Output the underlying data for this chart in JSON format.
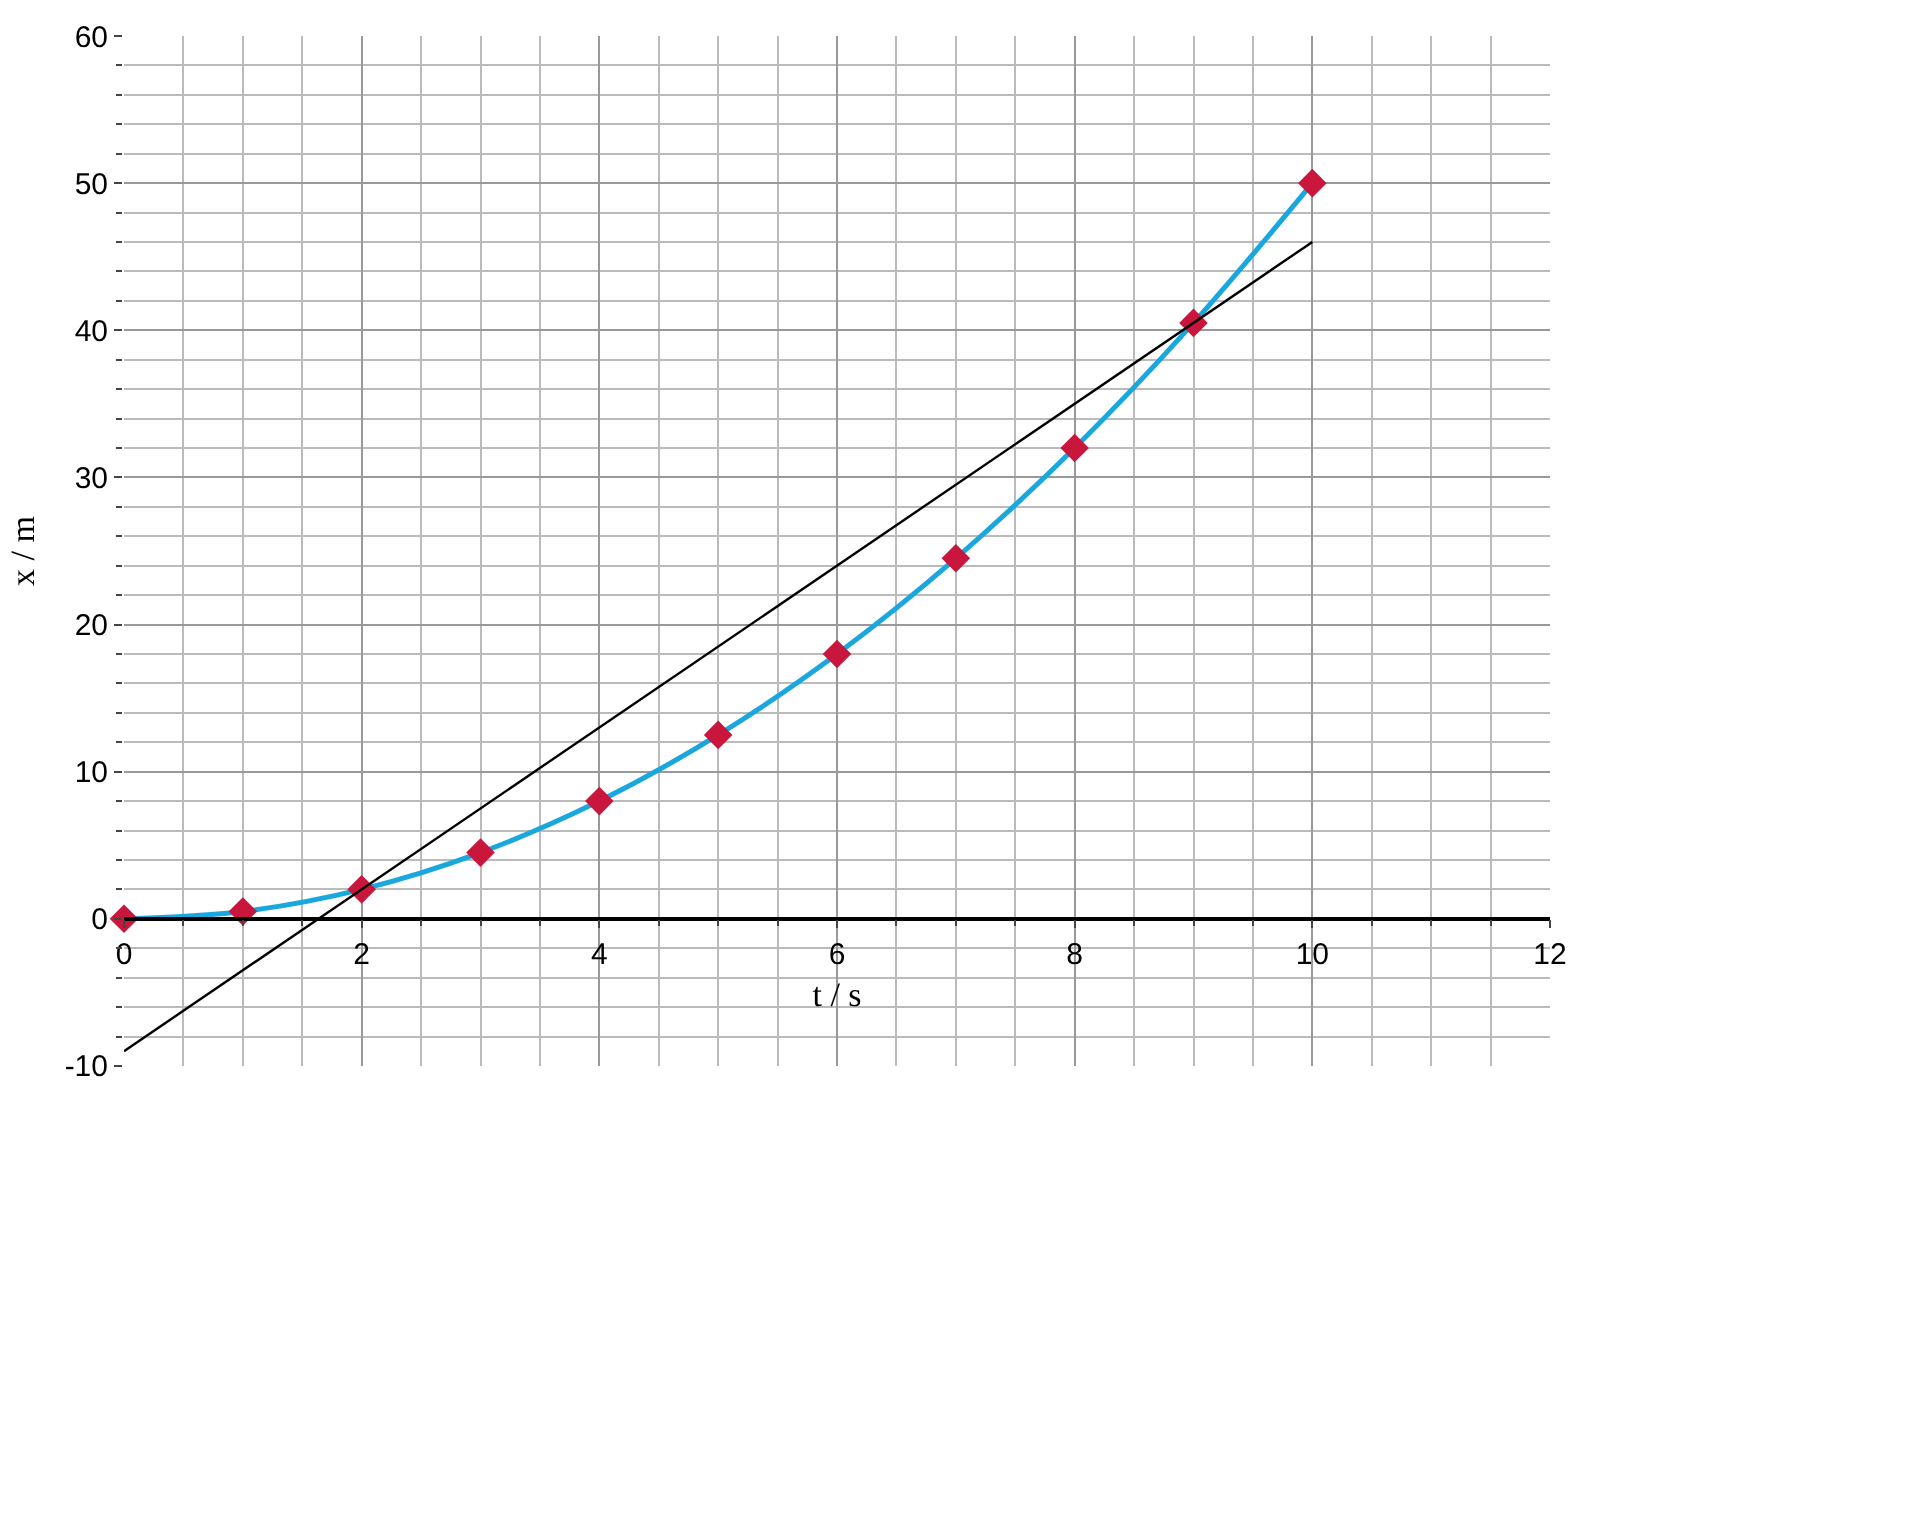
{
  "chart_data": {
    "type": "line",
    "xlabel": "t / s",
    "ylabel": "x / m",
    "x": [
      0,
      1,
      2,
      3,
      4,
      5,
      6,
      7,
      8,
      9,
      10
    ],
    "series": [
      {
        "color": "#1aa7de",
        "marker": "none",
        "values": [
          0,
          0.5,
          2,
          4.5,
          8,
          12.5,
          18,
          24.5,
          32,
          40.5,
          50
        ]
      },
      {
        "type": "scatter",
        "color": "#c8163c",
        "marker": "diamond",
        "values": [
          0,
          0.5,
          2,
          4.5,
          8,
          12.5,
          18,
          24.5,
          32,
          40.5,
          50
        ]
      },
      {
        "color": "#000000",
        "marker": "none",
        "x": [
          0,
          10
        ],
        "values": [
          -9,
          46
        ]
      }
    ],
    "xlim": [
      0,
      12
    ],
    "xticks": [
      0,
      2,
      4,
      6,
      8,
      10,
      12
    ],
    "ylim": [
      -10,
      60
    ],
    "yticks": [
      -10,
      0,
      10,
      20,
      30,
      40,
      50,
      60
    ],
    "grid": true
  }
}
